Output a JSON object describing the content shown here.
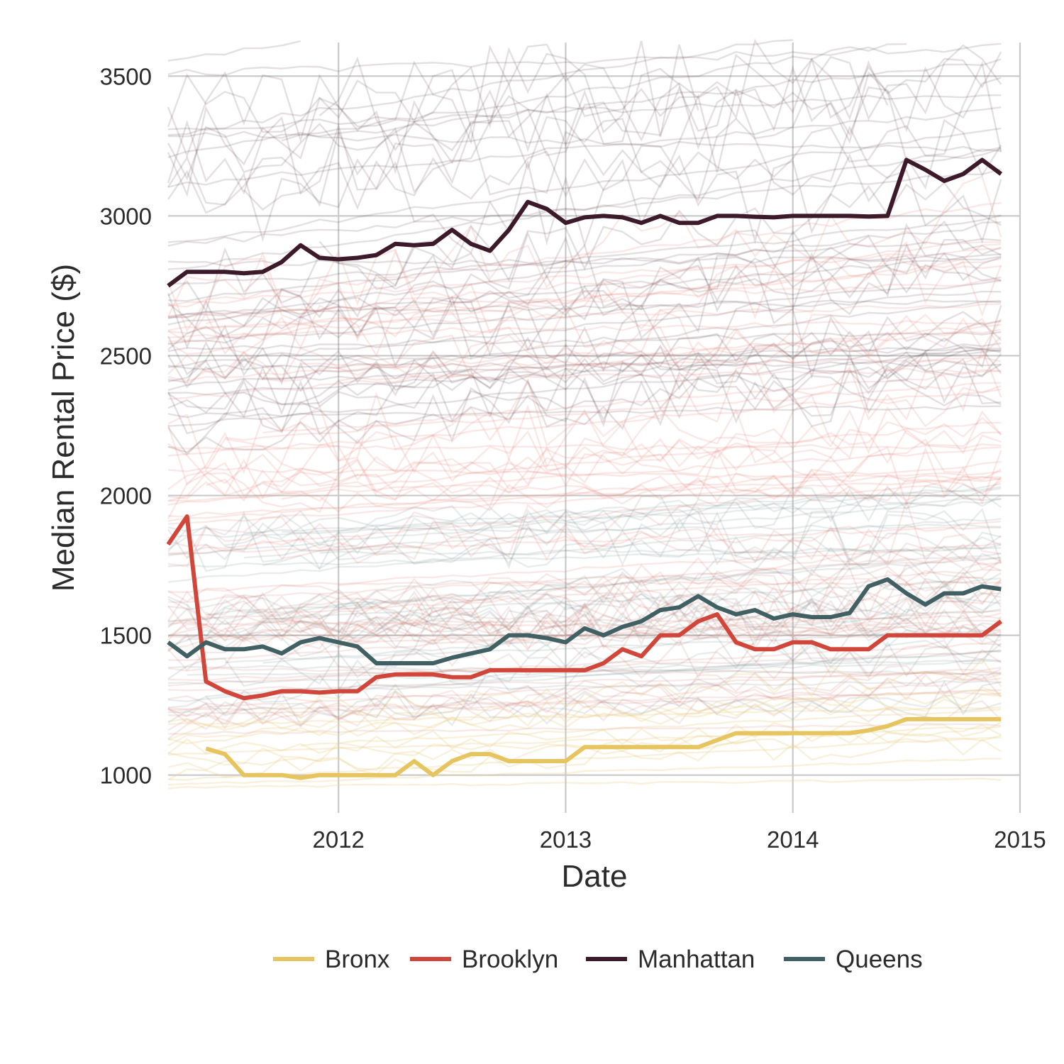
{
  "chart_data": {
    "type": "line",
    "xlabel": "Date",
    "ylabel": "Median Rental Price ($)",
    "title": "",
    "xlim": [
      "2011-04",
      "2015-01"
    ],
    "ylim": [
      880,
      3620
    ],
    "x_ticks": [
      "2012",
      "2013",
      "2014",
      "2015"
    ],
    "y_ticks": [
      1000,
      1500,
      2000,
      2500,
      3000,
      3500
    ],
    "grid": true,
    "legend_position": "bottom",
    "background_series": "many faint neighborhood-level lines behind the highlighted borough medians",
    "series": [
      {
        "name": "Bronx",
        "color": "#E6C45F",
        "x": [
          "2011-06",
          "2011-07",
          "2011-08",
          "2011-09",
          "2011-10",
          "2011-11",
          "2011-12",
          "2012-01",
          "2012-02",
          "2012-03",
          "2012-04",
          "2012-05",
          "2012-06",
          "2012-07",
          "2012-08",
          "2012-09",
          "2012-10",
          "2012-11",
          "2012-12",
          "2013-01",
          "2013-02",
          "2013-03",
          "2013-04",
          "2013-05",
          "2013-06",
          "2013-07",
          "2013-08",
          "2013-09",
          "2013-10",
          "2013-11",
          "2013-12",
          "2014-01",
          "2014-02",
          "2014-03",
          "2014-04",
          "2014-05",
          "2014-06",
          "2014-07",
          "2014-08",
          "2014-09",
          "2014-10",
          "2014-11",
          "2014-12"
        ],
        "values": [
          1095,
          1075,
          1000,
          1000,
          1000,
          990,
          1000,
          1000,
          1000,
          1000,
          1000,
          1050,
          1000,
          1050,
          1075,
          1075,
          1050,
          1050,
          1050,
          1050,
          1100,
          1100,
          1100,
          1100,
          1100,
          1100,
          1100,
          1125,
          1150,
          1150,
          1150,
          1150,
          1150,
          1150,
          1150,
          1160,
          1175,
          1200,
          1200,
          1200,
          1200,
          1200,
          1200
        ]
      },
      {
        "name": "Brooklyn",
        "color": "#D0463A",
        "x": [
          "2011-04",
          "2011-05",
          "2011-06",
          "2011-07",
          "2011-08",
          "2011-09",
          "2011-10",
          "2011-11",
          "2011-12",
          "2012-01",
          "2012-02",
          "2012-03",
          "2012-04",
          "2012-05",
          "2012-06",
          "2012-07",
          "2012-08",
          "2012-09",
          "2012-10",
          "2012-11",
          "2012-12",
          "2013-01",
          "2013-02",
          "2013-03",
          "2013-04",
          "2013-05",
          "2013-06",
          "2013-07",
          "2013-08",
          "2013-09",
          "2013-10",
          "2013-11",
          "2013-12",
          "2014-01",
          "2014-02",
          "2014-03",
          "2014-04",
          "2014-05",
          "2014-06",
          "2014-07",
          "2014-08",
          "2014-09",
          "2014-10",
          "2014-11",
          "2014-12"
        ],
        "values": [
          1825,
          1925,
          1335,
          1300,
          1275,
          1285,
          1300,
          1300,
          1295,
          1300,
          1300,
          1350,
          1360,
          1360,
          1360,
          1350,
          1350,
          1375,
          1375,
          1375,
          1375,
          1375,
          1375,
          1400,
          1450,
          1425,
          1500,
          1500,
          1550,
          1575,
          1475,
          1450,
          1450,
          1475,
          1475,
          1450,
          1450,
          1450,
          1500,
          1500,
          1500,
          1500,
          1500,
          1500,
          1550
        ]
      },
      {
        "name": "Manhattan",
        "color": "#3D1A2A",
        "x": [
          "2011-04",
          "2011-05",
          "2011-06",
          "2011-07",
          "2011-08",
          "2011-09",
          "2011-10",
          "2011-11",
          "2011-12",
          "2012-01",
          "2012-02",
          "2012-03",
          "2012-04",
          "2012-05",
          "2012-06",
          "2012-07",
          "2012-08",
          "2012-09",
          "2012-10",
          "2012-11",
          "2012-12",
          "2013-01",
          "2013-02",
          "2013-03",
          "2013-04",
          "2013-05",
          "2013-06",
          "2013-07",
          "2013-08",
          "2013-09",
          "2013-10",
          "2013-11",
          "2013-12",
          "2014-01",
          "2014-02",
          "2014-03",
          "2014-04",
          "2014-05",
          "2014-06",
          "2014-07",
          "2014-08",
          "2014-09",
          "2014-10",
          "2014-11",
          "2014-12"
        ],
        "values": [
          2750,
          2800,
          2800,
          2800,
          2795,
          2800,
          2835,
          2895,
          2850,
          2845,
          2850,
          2860,
          2900,
          2895,
          2900,
          2950,
          2900,
          2875,
          2950,
          3050,
          3025,
          2975,
          2995,
          3000,
          2995,
          2975,
          3000,
          2975,
          2975,
          3000,
          3000,
          2997,
          2995,
          3000,
          3000,
          3000,
          3000,
          2998,
          3000,
          3200,
          3165,
          3125,
          3150,
          3200,
          3150
        ]
      },
      {
        "name": "Queens",
        "color": "#416063",
        "x": [
          "2011-04",
          "2011-05",
          "2011-06",
          "2011-07",
          "2011-08",
          "2011-09",
          "2011-10",
          "2011-11",
          "2011-12",
          "2012-01",
          "2012-02",
          "2012-03",
          "2012-04",
          "2012-05",
          "2012-06",
          "2012-07",
          "2012-08",
          "2012-09",
          "2012-10",
          "2012-11",
          "2012-12",
          "2013-01",
          "2013-02",
          "2013-03",
          "2013-04",
          "2013-05",
          "2013-06",
          "2013-07",
          "2013-08",
          "2013-09",
          "2013-10",
          "2013-11",
          "2013-12",
          "2014-01",
          "2014-02",
          "2014-03",
          "2014-04",
          "2014-05",
          "2014-06",
          "2014-07",
          "2014-08",
          "2014-09",
          "2014-10",
          "2014-11",
          "2014-12"
        ],
        "values": [
          1475,
          1425,
          1475,
          1450,
          1450,
          1460,
          1435,
          1475,
          1490,
          1475,
          1460,
          1400,
          1400,
          1400,
          1400,
          1420,
          1435,
          1450,
          1500,
          1500,
          1490,
          1475,
          1525,
          1500,
          1530,
          1550,
          1590,
          1600,
          1640,
          1600,
          1575,
          1590,
          1560,
          1575,
          1565,
          1565,
          1580,
          1675,
          1700,
          1650,
          1610,
          1650,
          1650,
          1675,
          1665
        ]
      }
    ]
  }
}
